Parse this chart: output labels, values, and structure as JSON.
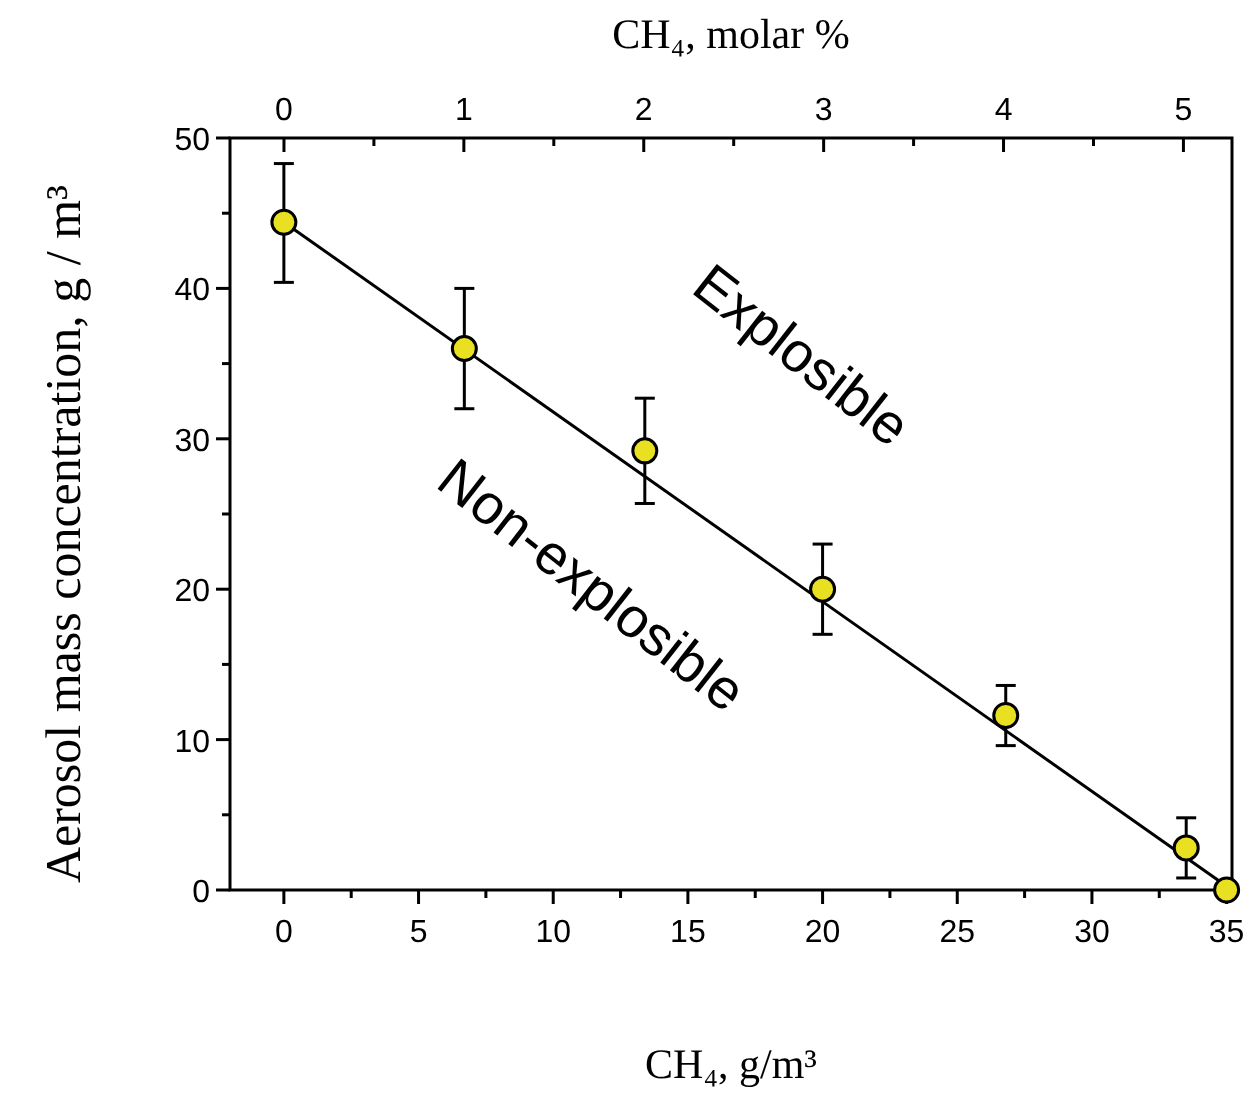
{
  "chart_data": {
    "type": "scatter",
    "xlabel": "CH₄, g/m³",
    "ylabel": "Aerosol mass concentration, g / m³",
    "x2label": "CH₄,  molar %",
    "annotations": [
      "Explosible",
      "Non-explosible"
    ],
    "xlim": [
      -2,
      35.2
    ],
    "xticks": [
      0,
      {
        "value": 2.5,
        "label": null
      },
      5,
      {
        "value": 7.5,
        "label": null
      },
      10,
      {
        "value": 12.5,
        "label": null
      },
      15,
      {
        "value": 17.5,
        "label": null
      },
      20,
      {
        "value": 22.5,
        "label": null
      },
      25,
      {
        "value": 27.5,
        "label": null
      },
      30,
      {
        "value": 32.5,
        "label": null
      },
      35
    ],
    "x2lim": [
      -0.3,
      5.27
    ],
    "x2ticks": [
      0,
      {
        "value": 0.5,
        "label": null
      },
      1,
      {
        "value": 1.5,
        "label": null
      },
      2,
      {
        "value": 2.5,
        "label": null
      },
      3,
      {
        "value": 3.5,
        "label": null
      },
      4,
      {
        "value": 4.5,
        "label": null
      },
      5
    ],
    "ylim": [
      0,
      50
    ],
    "yticks": [
      0,
      {
        "value": 5,
        "label": null
      },
      10,
      {
        "value": 15,
        "label": null
      },
      20,
      {
        "value": 25,
        "label": null
      },
      30,
      {
        "value": 35,
        "label": null
      },
      40,
      {
        "value": 45,
        "label": null
      },
      50
    ],
    "marker": "circle",
    "grid": false,
    "series": [
      {
        "type": "line",
        "marker": "none",
        "color": "#000000",
        "x": [
          0,
          35.2
        ],
        "values": [
          44.4,
          0
        ]
      },
      {
        "color": "#e8e020",
        "x": [
          0,
          6.7,
          13.4,
          20,
          26.8,
          33.5,
          35
        ],
        "values": [
          44.4,
          36,
          29.2,
          20,
          11.6,
          2.8,
          0
        ],
        "errors": [
          [
            40.4,
            48.3
          ],
          [
            32,
            40
          ],
          [
            25.7,
            32.7
          ],
          [
            17,
            23
          ],
          [
            9.6,
            13.6
          ],
          [
            0.8,
            4.8
          ],
          null
        ]
      }
    ]
  }
}
